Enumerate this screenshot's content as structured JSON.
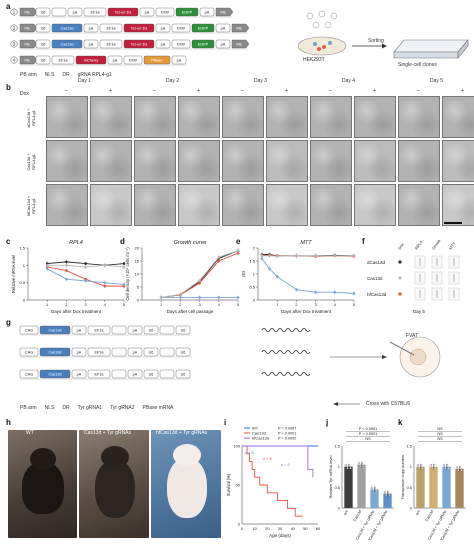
{
  "panel_a": {
    "label": "a",
    "constructs": [
      {
        "num": "1",
        "els": [
          "PB",
          "U6",
          "",
          "pA",
          "EF1a",
          "Tet-on 3G",
          "pA",
          "CMV",
          "EGFP",
          "pA",
          "PB"
        ]
      },
      {
        "num": "2",
        "els": [
          "PB",
          "U6",
          "Cas13d",
          "pA",
          "EF1a",
          "Tet-on 3G",
          "pA",
          "CMV",
          "EGFP",
          "pA",
          "PB"
        ]
      },
      {
        "num": "3",
        "els": [
          "PB",
          "U6",
          "Cas13d",
          "pA",
          "EF1a",
          "Tet-on 3G",
          "pA",
          "CMV",
          "EGFP",
          "pA",
          "PB"
        ]
      },
      {
        "num": "4",
        "els": [
          "PB",
          "U6",
          "EF1a",
          "mCherry",
          "pA",
          "CMV",
          "PBase",
          "pA"
        ]
      }
    ],
    "legend": [
      "PB arm",
      "NLS",
      "DR",
      "gRNA RPL4-g1"
    ],
    "cell_label": "HEK293T",
    "sorting_label": "Sorting",
    "clone_label": "Single-cell clones"
  },
  "panel_b": {
    "label": "b",
    "dox_label": "Dox",
    "days": [
      "Day 1",
      "Day 2",
      "Day 3",
      "Day 4",
      "Day 5"
    ],
    "conditions": [
      "–",
      "+"
    ],
    "rows": [
      "dCas13d + RPL4-g1",
      "Cas13d + RPL4-g1",
      "hfCas13d + RPL4-g1"
    ]
  },
  "panel_c": {
    "label": "c",
    "chart_data": {
      "type": "line",
      "title": "RPL4",
      "xlabel": "Days after Dox treatment",
      "ylabel": "Relative mRNA level",
      "x": [
        1,
        2,
        3,
        4,
        5
      ],
      "ylim": [
        0,
        1.5
      ],
      "yticks": [
        0,
        0.5,
        1.0,
        1.5
      ],
      "series": [
        {
          "color": "#2b2b2b",
          "values": [
            1.05,
            1.1,
            1.05,
            1.0,
            1.05
          ]
        },
        {
          "color": "#e0523f",
          "values": [
            0.95,
            0.85,
            0.6,
            0.4,
            0.4
          ]
        },
        {
          "color": "#7aa7d6",
          "values": [
            0.9,
            0.6,
            0.55,
            0.5,
            0.45
          ]
        },
        {
          "color": "#b8b8b8",
          "values": [
            1.0,
            1.0,
            0.95,
            1.0,
            0.95
          ]
        }
      ]
    }
  },
  "panel_d": {
    "label": "d",
    "chart_data": {
      "type": "line",
      "title": "Growth curve",
      "xlabel": "Days after cell passage",
      "ylabel": "Cell density (×10⁵ cells ml⁻¹)",
      "x": [
        1,
        2,
        3,
        4,
        5
      ],
      "ylim": [
        0,
        20
      ],
      "yticks": [
        0,
        5,
        10,
        15,
        20
      ],
      "series": [
        {
          "color": "#2b2b2b",
          "values": [
            1,
            2,
            7,
            16,
            19
          ]
        },
        {
          "color": "#e0523f",
          "values": [
            1,
            2,
            6.5,
            15,
            18
          ]
        },
        {
          "color": "#7aa7d6",
          "values": [
            1,
            1,
            1,
            1,
            1
          ]
        },
        {
          "color": "#b8b8b8",
          "values": [
            1,
            2.2,
            7.5,
            16.5,
            19
          ]
        }
      ]
    }
  },
  "panel_e": {
    "label": "e",
    "chart_data": {
      "type": "line",
      "title": "MTT",
      "xlabel": "Days after Dox treatment",
      "ylabel": "OD",
      "x": [
        0.2,
        0.6,
        1,
        2,
        3,
        4,
        5
      ],
      "ylim": [
        0,
        2.0
      ],
      "yticks": [
        0,
        0.5,
        1.0,
        1.5,
        2.0
      ],
      "series": [
        {
          "color": "#2b2b2b",
          "values": [
            1.75,
            1.75,
            1.7,
            1.7,
            1.7,
            1.72,
            1.7
          ]
        },
        {
          "color": "#e0523f",
          "values": [
            1.72,
            1.72,
            1.7,
            1.7,
            1.68,
            1.7,
            1.68
          ]
        },
        {
          "color": "#7aa7d6",
          "values": [
            1.6,
            1.2,
            0.9,
            0.4,
            0.3,
            0.3,
            0.25
          ]
        },
        {
          "color": "#b8b8b8",
          "values": [
            1.7,
            1.7,
            1.68,
            1.7,
            1.7,
            1.7,
            1.7
          ]
        }
      ]
    }
  },
  "panel_f": {
    "label": "f",
    "headers": [
      "Dox",
      "RPL4 mRNA",
      "Growth curve",
      "MTT"
    ],
    "rows": [
      "dCas13d",
      "Cas13d",
      "hfCas13d"
    ],
    "footer": "Day 5"
  },
  "panel_g": {
    "label": "g",
    "constructs": [
      {
        "els": [
          "CAG",
          "Cas13d",
          "pA",
          "EF1a",
          "",
          "pA",
          "U6",
          "",
          "U6"
        ]
      },
      {
        "els": [
          "CAG",
          "Cas13d",
          "pA",
          "EF1a",
          "",
          "pA",
          "U6",
          "",
          "U6"
        ]
      },
      {
        "els": [
          "CAG",
          "Cas13d",
          "pA",
          "EF1a",
          "",
          "pA",
          "U6",
          "",
          "U6"
        ]
      }
    ],
    "legend": [
      "PB arm",
      "NLS",
      "DR",
      "Tyr gRNA1",
      "Tyr gRNA2",
      "PBase mRNA"
    ],
    "cross_label": "Cross with C57BL/6",
    "embryo_label": "FVAT"
  },
  "panel_h": {
    "label": "h",
    "photos": [
      "WT",
      "Cas13d + Tyr gRNAs",
      "hfCas13d + Tyr gRNAs"
    ]
  },
  "panel_i": {
    "label": "i",
    "chart_data": {
      "type": "line",
      "xlabel": "Age (days)",
      "ylabel": "Survival (%)",
      "xlim": [
        0,
        60
      ],
      "ylim": [
        0,
        100
      ],
      "xticks": [
        0,
        10,
        20,
        30,
        40,
        50,
        60
      ],
      "yticks": [
        0,
        50,
        100
      ],
      "series": [
        {
          "name": "WT",
          "color": "#2b6fd4",
          "x": [
            0,
            60
          ],
          "values": [
            100,
            100
          ]
        },
        {
          "name": "Cas13d",
          "color": "#e0523f",
          "x": [
            0,
            4,
            6,
            8,
            10,
            14,
            20,
            28,
            36,
            42,
            48
          ],
          "values": [
            100,
            90,
            80,
            70,
            60,
            50,
            40,
            30,
            20,
            10,
            10
          ]
        },
        {
          "name": "hfCas13d",
          "color": "#9b6ad8",
          "x": [
            0,
            48,
            52,
            56
          ],
          "values": [
            100,
            100,
            70,
            60
          ]
        }
      ],
      "pvalues": [
        "P = 0.0007",
        "P < 0.0001",
        "P = 0.0002"
      ],
      "n_labels": [
        "n = 5",
        "n = 8",
        "n = 5"
      ]
    }
  },
  "panel_j": {
    "label": "j",
    "chart_data": {
      "type": "bar",
      "categories": [
        "WT",
        "Cas13d",
        "Cas13d + Tyr gRNAs",
        "hfCas13d + Tyr gRNAs"
      ],
      "values": [
        1.0,
        1.05,
        0.45,
        0.35
      ],
      "colors": [
        "#3d3d3d",
        "#a0a0a0",
        "#7aa7d6",
        "#5d8fc8"
      ],
      "ylabel": "Relative Tyr mRNA level",
      "ylim": [
        0,
        1.5
      ],
      "yticks": [
        0,
        0.5,
        1.0,
        1.5
      ],
      "annotations": [
        "P < 0.0001",
        "P = 0.0001",
        "NS"
      ]
    }
  },
  "panel_k": {
    "label": "k",
    "chart_data": {
      "type": "bar",
      "categories": [
        "WT",
        "Cas13d",
        "Cas13d + Tyr gRNAs",
        "hfCas13d + Tyr gRNAs"
      ],
      "values": [
        1.0,
        1.0,
        1.0,
        0.95
      ],
      "colors": [
        "#b8a06a",
        "#d0b070",
        "#7aa7d6",
        "#a7855a"
      ],
      "ylabel": "Transposon copy number",
      "ylim": [
        0,
        1.5
      ],
      "yticks": [
        0,
        0.5,
        1.0,
        1.5
      ],
      "annotations": [
        "NS",
        "NS",
        "NS"
      ]
    }
  }
}
